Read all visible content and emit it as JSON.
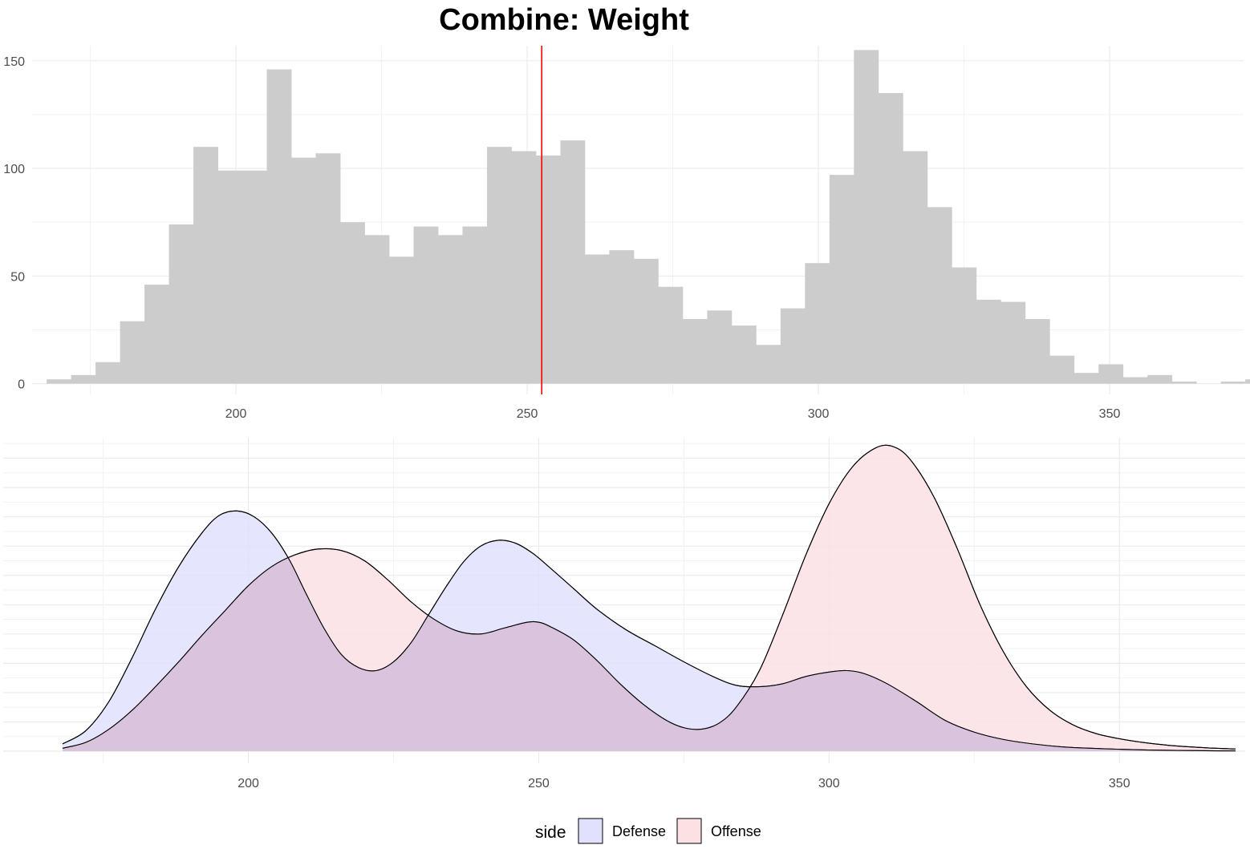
{
  "title": "Combine: Weight",
  "chart_data": [
    {
      "type": "bar",
      "subtype": "histogram",
      "title": "Combine: Weight",
      "xlabel": "",
      "ylabel": "",
      "bin_width": 4.2,
      "bin_start": 167.5,
      "counts": [
        2,
        4,
        10,
        29,
        46,
        74,
        110,
        99,
        99,
        146,
        105,
        107,
        75,
        69,
        59,
        73,
        69,
        73,
        110,
        108,
        106,
        113,
        60,
        62,
        58,
        45,
        30,
        34,
        27,
        18,
        35,
        56,
        97,
        155,
        135,
        108,
        82,
        54,
        39,
        38,
        30,
        13,
        5,
        9,
        3,
        4,
        1,
        0,
        1,
        2
      ],
      "xlim": [
        165,
        373
      ],
      "ylim": [
        -5,
        157
      ],
      "x_ticks": [
        200,
        250,
        300,
        350
      ],
      "y_ticks": [
        0,
        50,
        100,
        150
      ],
      "colors": {
        "bar": "#cccccc",
        "reference_line": "#ff0000"
      },
      "reference_line": {
        "orientation": "vertical",
        "x": 252.5
      },
      "grid": true
    },
    {
      "type": "area",
      "subtype": "density",
      "xlabel": "",
      "ylabel": "",
      "xlim": [
        165,
        373
      ],
      "y_tick_labels_shown": false,
      "x_ticks": [
        200,
        250,
        300,
        350
      ],
      "grid": true,
      "legend": {
        "title": "side",
        "placement": "bottom"
      },
      "series": [
        {
          "name": "Defense",
          "fill": "#e1e1fd",
          "points": [
            [
              168,
              0.005
            ],
            [
              172,
              0.014
            ],
            [
              176,
              0.034
            ],
            [
              180,
              0.064
            ],
            [
              184,
              0.097
            ],
            [
              188,
              0.126
            ],
            [
              192,
              0.149
            ],
            [
              195,
              0.161
            ],
            [
              198,
              0.164
            ],
            [
              201,
              0.16
            ],
            [
              204,
              0.149
            ],
            [
              207,
              0.131
            ],
            [
              210,
              0.107
            ],
            [
              213,
              0.084
            ],
            [
              216,
              0.066
            ],
            [
              219,
              0.057
            ],
            [
              222,
              0.055
            ],
            [
              225,
              0.061
            ],
            [
              228,
              0.074
            ],
            [
              231,
              0.093
            ],
            [
              234,
              0.112
            ],
            [
              237,
              0.129
            ],
            [
              240,
              0.14
            ],
            [
              243,
              0.144
            ],
            [
              246,
              0.142
            ],
            [
              249,
              0.135
            ],
            [
              252,
              0.125
            ],
            [
              256,
              0.111
            ],
            [
              260,
              0.097
            ],
            [
              265,
              0.083
            ],
            [
              270,
              0.072
            ],
            [
              275,
              0.061
            ],
            [
              280,
              0.051
            ],
            [
              284,
              0.045
            ],
            [
              288,
              0.044
            ],
            [
              292,
              0.046
            ],
            [
              296,
              0.051
            ],
            [
              300,
              0.054
            ],
            [
              303,
              0.055
            ],
            [
              306,
              0.053
            ],
            [
              310,
              0.046
            ],
            [
              315,
              0.034
            ],
            [
              320,
              0.021
            ],
            [
              325,
              0.013
            ],
            [
              330,
              0.008
            ],
            [
              335,
              0.005
            ],
            [
              340,
              0.003
            ],
            [
              345,
              0.002
            ],
            [
              350,
              0.0013
            ],
            [
              355,
              0.0008
            ],
            [
              360,
              0.0005
            ],
            [
              365,
              0.0003
            ],
            [
              370,
              0.0002
            ]
          ]
        },
        {
          "name": "Offense",
          "fill": "#fbe1e4",
          "points": [
            [
              168,
              0.002
            ],
            [
              172,
              0.006
            ],
            [
              176,
              0.015
            ],
            [
              180,
              0.028
            ],
            [
              184,
              0.044
            ],
            [
              188,
              0.061
            ],
            [
              192,
              0.079
            ],
            [
              196,
              0.096
            ],
            [
              200,
              0.113
            ],
            [
              204,
              0.126
            ],
            [
              208,
              0.134
            ],
            [
              212,
              0.138
            ],
            [
              216,
              0.137
            ],
            [
              220,
              0.13
            ],
            [
              224,
              0.117
            ],
            [
              228,
              0.102
            ],
            [
              232,
              0.09
            ],
            [
              236,
              0.082
            ],
            [
              240,
              0.08
            ],
            [
              244,
              0.084
            ],
            [
              248,
              0.088
            ],
            [
              250,
              0.088
            ],
            [
              252,
              0.085
            ],
            [
              256,
              0.076
            ],
            [
              260,
              0.062
            ],
            [
              264,
              0.046
            ],
            [
              268,
              0.032
            ],
            [
              272,
              0.021
            ],
            [
              275,
              0.016
            ],
            [
              278,
              0.015
            ],
            [
              281,
              0.019
            ],
            [
              284,
              0.03
            ],
            [
              288,
              0.055
            ],
            [
              292,
              0.093
            ],
            [
              296,
              0.134
            ],
            [
              300,
              0.169
            ],
            [
              304,
              0.194
            ],
            [
              308,
              0.207
            ],
            [
              311,
              0.208
            ],
            [
              314,
              0.199
            ],
            [
              318,
              0.174
            ],
            [
              322,
              0.139
            ],
            [
              326,
              0.1
            ],
            [
              330,
              0.068
            ],
            [
              334,
              0.044
            ],
            [
              338,
              0.028
            ],
            [
              342,
              0.018
            ],
            [
              346,
              0.012
            ],
            [
              350,
              0.0085
            ],
            [
              355,
              0.0055
            ],
            [
              360,
              0.0035
            ],
            [
              365,
              0.0023
            ],
            [
              370,
              0.0015
            ]
          ]
        }
      ]
    }
  ]
}
